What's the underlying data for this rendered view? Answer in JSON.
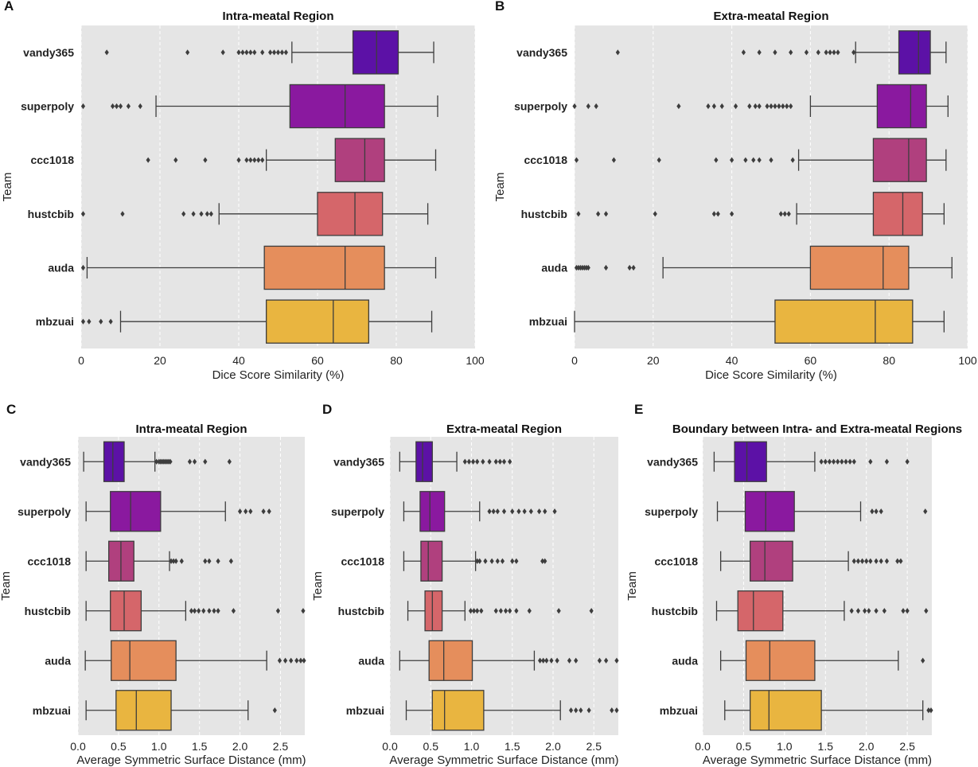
{
  "chart_data": [
    {
      "panel": "A",
      "type": "box",
      "title": "Intra-meatal Region",
      "xlabel": "Dice Score Similarity (%)",
      "ylabel": "Team",
      "xlim": [
        0,
        100
      ],
      "xticks": [
        0,
        20,
        40,
        60,
        80,
        100
      ],
      "xtick_labels": [
        "0",
        "20",
        "40",
        "60",
        "80",
        "100"
      ],
      "grid": "vertical dashed",
      "categories": [
        "vandy365",
        "superpoly",
        "ccc1018",
        "hustcbib",
        "auda",
        "mbzuai"
      ],
      "colors": [
        "#5c11a6",
        "#8a199f",
        "#b0407e",
        "#d5666a",
        "#e58e5c",
        "#e9b540"
      ],
      "series": [
        {
          "name": "vandy365",
          "whislo": 53.5,
          "q1": 69,
          "med": 75,
          "q3": 80.5,
          "whishi": 89.5,
          "fliers": [
            6.5,
            27,
            36,
            40,
            41,
            42,
            43,
            44,
            46,
            48,
            49,
            50,
            51,
            52
          ]
        },
        {
          "name": "superpoly",
          "whislo": 19,
          "q1": 53,
          "med": 67,
          "q3": 77,
          "whishi": 90.5,
          "fliers": [
            0.5,
            8,
            9,
            10,
            12,
            15
          ]
        },
        {
          "name": "ccc1018",
          "whislo": 47,
          "q1": 64.5,
          "med": 72,
          "q3": 77,
          "whishi": 90,
          "fliers": [
            17,
            24,
            31.5,
            40,
            42,
            43,
            44,
            45,
            46
          ]
        },
        {
          "name": "hustcbib",
          "whislo": 35,
          "q1": 60,
          "med": 69.5,
          "q3": 76.5,
          "whishi": 88,
          "fliers": [
            0.5,
            10.5,
            26,
            28.5,
            30.5,
            32,
            33
          ]
        },
        {
          "name": "auda",
          "whislo": 1.5,
          "q1": 46.5,
          "med": 67,
          "q3": 77,
          "whishi": 90,
          "fliers": [
            0.5
          ]
        },
        {
          "name": "mbzuai",
          "whislo": 10,
          "q1": 47,
          "med": 64,
          "q3": 73,
          "whishi": 89,
          "fliers": [
            0.5,
            2,
            5,
            7.5
          ]
        }
      ]
    },
    {
      "panel": "B",
      "type": "box",
      "title": "Extra-meatal Region",
      "xlabel": "Dice Score Similarity (%)",
      "ylabel": "Team",
      "xlim": [
        0,
        100
      ],
      "xticks": [
        0,
        20,
        40,
        60,
        80,
        100
      ],
      "xtick_labels": [
        "0",
        "20",
        "40",
        "60",
        "80",
        "100"
      ],
      "grid": "vertical dashed",
      "categories": [
        "vandy365",
        "superpoly",
        "ccc1018",
        "hustcbib",
        "auda",
        "mbzuai"
      ],
      "colors": [
        "#5c11a6",
        "#8a199f",
        "#b0407e",
        "#d5666a",
        "#e58e5c",
        "#e9b540"
      ],
      "series": [
        {
          "name": "vandy365",
          "whislo": 71.5,
          "q1": 82.5,
          "med": 87.5,
          "q3": 90.5,
          "whishi": 94.5,
          "fliers": [
            11,
            43,
            47,
            51,
            55,
            59,
            62,
            64,
            65,
            66,
            67,
            71
          ]
        },
        {
          "name": "superpoly",
          "whislo": 60,
          "q1": 77,
          "med": 85.5,
          "q3": 89.5,
          "whishi": 95,
          "fliers": [
            0,
            3.5,
            5.5,
            26.5,
            34,
            35.5,
            37.5,
            41,
            44.5,
            46,
            47,
            49,
            50,
            51,
            52,
            53,
            54,
            55
          ]
        },
        {
          "name": "ccc1018",
          "whislo": 57,
          "q1": 76,
          "med": 85,
          "q3": 89.5,
          "whishi": 94.5,
          "fliers": [
            0.5,
            10,
            21.5,
            36,
            40,
            43.5,
            45.5,
            47,
            50,
            55.5
          ]
        },
        {
          "name": "hustcbib",
          "whislo": 56.5,
          "q1": 76,
          "med": 83.5,
          "q3": 88.5,
          "whishi": 94,
          "fliers": [
            1,
            6,
            8,
            20.5,
            35.5,
            36.5,
            40,
            52.5,
            53.5,
            54.5
          ]
        },
        {
          "name": "auda",
          "whislo": 22.5,
          "q1": 60,
          "med": 78.5,
          "q3": 85,
          "whishi": 96,
          "fliers": [
            0.5,
            1,
            1.5,
            2,
            2.5,
            3,
            3.5,
            8,
            14,
            15
          ]
        },
        {
          "name": "mbzuai",
          "whislo": 0,
          "q1": 51,
          "med": 76.5,
          "q3": 86,
          "whishi": 94,
          "fliers": []
        }
      ]
    },
    {
      "panel": "C",
      "type": "box",
      "title": "Intra-meatal Region",
      "xlabel": "Average Symmetric Surface Distance (mm)",
      "ylabel": "Team",
      "xlim": [
        0,
        2.8
      ],
      "xticks": [
        0,
        0.5,
        1,
        1.5,
        2,
        2.5
      ],
      "xtick_labels": [
        "0.0",
        "0.5",
        "1.0",
        "1.5",
        "2.0",
        "2.5"
      ],
      "grid": "vertical dashed",
      "categories": [
        "vandy365",
        "superpoly",
        "ccc1018",
        "hustcbib",
        "auda",
        "mbzuai"
      ],
      "colors": [
        "#5c11a6",
        "#8a199f",
        "#b0407e",
        "#d5666a",
        "#e58e5c",
        "#e9b540"
      ],
      "series": [
        {
          "name": "vandy365",
          "whislo": 0.07,
          "q1": 0.32,
          "med": 0.43,
          "q3": 0.57,
          "whishi": 0.95,
          "fliers": [
            0.97,
            1.0,
            1.02,
            1.04,
            1.06,
            1.08,
            1.1,
            1.12,
            1.14,
            1.38,
            1.44,
            1.57,
            1.87
          ]
        },
        {
          "name": "superpoly",
          "whislo": 0.1,
          "q1": 0.4,
          "med": 0.65,
          "q3": 1.02,
          "whishi": 1.82,
          "fliers": [
            2.0,
            2.07,
            2.13,
            2.29,
            2.36
          ]
        },
        {
          "name": "ccc1018",
          "whislo": 0.1,
          "q1": 0.38,
          "med": 0.53,
          "q3": 0.69,
          "whishi": 1.13,
          "fliers": [
            1.15,
            1.18,
            1.21,
            1.28,
            1.57,
            1.62,
            1.73,
            1.89
          ]
        },
        {
          "name": "hustcbib",
          "whislo": 0.1,
          "q1": 0.4,
          "med": 0.57,
          "q3": 0.78,
          "whishi": 1.33,
          "fliers": [
            1.4,
            1.44,
            1.49,
            1.55,
            1.62,
            1.68,
            1.73,
            1.92,
            2.47,
            2.78
          ]
        },
        {
          "name": "auda",
          "whislo": 0.09,
          "q1": 0.41,
          "med": 0.64,
          "q3": 1.21,
          "whishi": 2.33,
          "fliers": [
            2.49,
            2.56,
            2.63,
            2.7,
            2.75,
            2.79
          ]
        },
        {
          "name": "mbzuai",
          "whislo": 0.1,
          "q1": 0.47,
          "med": 0.72,
          "q3": 1.15,
          "whishi": 2.1,
          "fliers": [
            2.43
          ]
        }
      ]
    },
    {
      "panel": "D",
      "type": "box",
      "title": "Extra-meatal Region",
      "xlabel": "Average Symmetric Surface Distance (mm)",
      "ylabel": "Team",
      "xlim": [
        0,
        2.8
      ],
      "xticks": [
        0,
        0.5,
        1,
        1.5,
        2,
        2.5
      ],
      "xtick_labels": [
        "0.0",
        "0.5",
        "1.0",
        "1.5",
        "2.0",
        "2.5"
      ],
      "grid": "vertical dashed",
      "categories": [
        "vandy365",
        "superpoly",
        "ccc1018",
        "hustcbib",
        "auda",
        "mbzuai"
      ],
      "colors": [
        "#5c11a6",
        "#8a199f",
        "#b0407e",
        "#d5666a",
        "#e58e5c",
        "#e9b540"
      ],
      "series": [
        {
          "name": "vandy365",
          "whislo": 0.12,
          "q1": 0.32,
          "med": 0.4,
          "q3": 0.52,
          "whishi": 0.82,
          "fliers": [
            0.92,
            0.97,
            1.02,
            1.07,
            1.14,
            1.22,
            1.3,
            1.35,
            1.4,
            1.47
          ]
        },
        {
          "name": "superpoly",
          "whislo": 0.17,
          "q1": 0.37,
          "med": 0.49,
          "q3": 0.67,
          "whishi": 1.1,
          "fliers": [
            1.22,
            1.27,
            1.32,
            1.4,
            1.5,
            1.58,
            1.65,
            1.73,
            1.83,
            1.9,
            2.02
          ]
        },
        {
          "name": "ccc1018",
          "whislo": 0.17,
          "q1": 0.38,
          "med": 0.47,
          "q3": 0.64,
          "whishi": 1.05,
          "fliers": [
            1.07,
            1.1,
            1.17,
            1.25,
            1.32,
            1.38,
            1.5,
            1.55,
            1.87,
            1.9
          ]
        },
        {
          "name": "hustcbib",
          "whislo": 0.22,
          "q1": 0.43,
          "med": 0.52,
          "q3": 0.64,
          "whishi": 0.92,
          "fliers": [
            0.99,
            1.03,
            1.07,
            1.12,
            1.3,
            1.36,
            1.42,
            1.47,
            1.55,
            1.71,
            2.07,
            2.47
          ]
        },
        {
          "name": "auda",
          "whislo": 0.12,
          "q1": 0.48,
          "med": 0.66,
          "q3": 1.01,
          "whishi": 1.77,
          "fliers": [
            1.84,
            1.88,
            1.92,
            1.98,
            2.05,
            2.2,
            2.28,
            2.57,
            2.65,
            2.78
          ]
        },
        {
          "name": "mbzuai",
          "whislo": 0.2,
          "q1": 0.52,
          "med": 0.67,
          "q3": 1.15,
          "whishi": 2.09,
          "fliers": [
            2.22,
            2.28,
            2.34,
            2.44,
            2.72,
            2.78
          ]
        }
      ]
    },
    {
      "panel": "E",
      "type": "box",
      "title": "Boundary between Intra- and Extra-meatal Regions",
      "xlabel": "Average Symmetric Surface Distance (mm)",
      "ylabel": "Team",
      "xlim": [
        0,
        2.8
      ],
      "xticks": [
        0,
        0.5,
        1,
        1.5,
        2,
        2.5
      ],
      "xtick_labels": [
        "0.0",
        "0.5",
        "1.0",
        "1.5",
        "2.0",
        "2.5"
      ],
      "grid": "vertical dashed",
      "categories": [
        "vandy365",
        "superpoly",
        "ccc1018",
        "hustcbib",
        "auda",
        "mbzuai"
      ],
      "colors": [
        "#5c11a6",
        "#8a199f",
        "#b0407e",
        "#d5666a",
        "#e58e5c",
        "#e9b540"
      ],
      "series": [
        {
          "name": "vandy365",
          "whislo": 0.14,
          "q1": 0.39,
          "med": 0.54,
          "q3": 0.78,
          "whishi": 1.37,
          "fliers": [
            1.45,
            1.5,
            1.55,
            1.6,
            1.65,
            1.7,
            1.75,
            1.8,
            1.85,
            2.05,
            2.25,
            2.5
          ]
        },
        {
          "name": "superpoly",
          "whislo": 0.18,
          "q1": 0.52,
          "med": 0.77,
          "q3": 1.12,
          "whishi": 1.93,
          "fliers": [
            2.07,
            2.12,
            2.18,
            2.72
          ]
        },
        {
          "name": "ccc1018",
          "whislo": 0.22,
          "q1": 0.58,
          "med": 0.76,
          "q3": 1.1,
          "whishi": 1.78,
          "fliers": [
            1.85,
            1.9,
            1.95,
            2.0,
            2.05,
            2.12,
            2.18,
            2.25,
            2.38,
            2.42
          ]
        },
        {
          "name": "hustcbib",
          "whislo": 0.17,
          "q1": 0.43,
          "med": 0.62,
          "q3": 0.98,
          "whishi": 1.73,
          "fliers": [
            1.82,
            1.9,
            1.98,
            2.03,
            2.12,
            2.22,
            2.45,
            2.5,
            2.73
          ]
        },
        {
          "name": "auda",
          "whislo": 0.22,
          "q1": 0.53,
          "med": 0.82,
          "q3": 1.37,
          "whishi": 2.39,
          "fliers": [
            2.69
          ]
        },
        {
          "name": "mbzuai",
          "whislo": 0.27,
          "q1": 0.58,
          "med": 0.81,
          "q3": 1.45,
          "whishi": 2.69,
          "fliers": [
            2.76,
            2.79
          ]
        }
      ]
    }
  ]
}
